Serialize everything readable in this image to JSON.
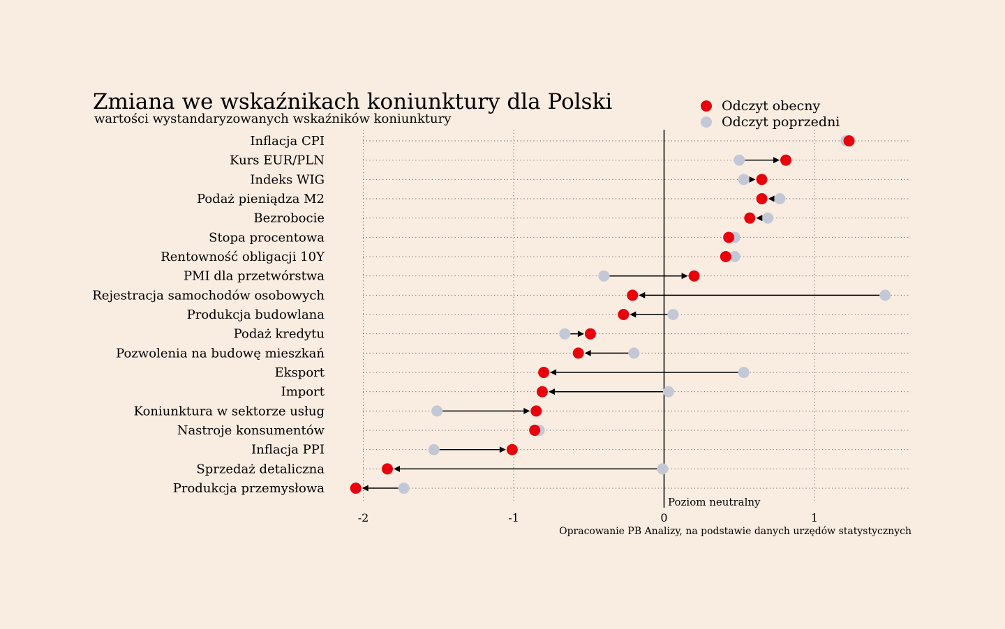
{
  "chart_data": {
    "type": "scatter",
    "subtype": "dumbbell-arrow",
    "title": "Zmiana we wskaźnikach koniunktury dla Polski",
    "subtitle": "wartości wystandaryzowanych wskaźników koniunktury",
    "source": "Opracowanie PB Analizy, na podstawie danych urzędów statystycznych",
    "neutral_label": "Poziom neutralny",
    "xlim": [
      -2.15,
      1.64
    ],
    "xticks": [
      -2,
      -1,
      0,
      1
    ],
    "xtick_labels": [
      "-2",
      "-1",
      "0",
      "1"
    ],
    "grid": true,
    "legend_position": "top-right",
    "series": [
      {
        "name": "Odczyt obecny",
        "color": "#e8000b"
      },
      {
        "name": "Odczyt poprzedni",
        "color": "#c3c8d6"
      }
    ],
    "categories": [
      "Inflacja CPI",
      "Kurs EUR/PLN",
      "Indeks WIG",
      "Podaż pieniądza M2",
      "Bezrobocie",
      "Stopa procentowa",
      "Rentowność obligacji 10Y",
      "PMI dla przetwórstwa",
      "Rejestracja samochodów osobowych",
      "Produkcja budowlana",
      "Podaż kredytu",
      "Pozwolenia na budowę mieszkań",
      "Eksport",
      "Import",
      "Koniunktura w sektorze usług",
      "Nastroje konsumentów",
      "Inflacja PPI",
      "Sprzedaż detaliczna",
      "Produkcja przemysłowa"
    ],
    "current": [
      1.23,
      0.81,
      0.65,
      0.65,
      0.57,
      0.43,
      0.41,
      0.2,
      -0.21,
      -0.27,
      -0.49,
      -0.57,
      -0.8,
      -0.81,
      -0.85,
      -0.86,
      -1.01,
      -1.84,
      -2.05
    ],
    "previous": [
      1.21,
      0.5,
      0.53,
      0.77,
      0.69,
      0.47,
      0.47,
      -0.4,
      1.47,
      0.06,
      -0.66,
      -0.2,
      0.53,
      0.03,
      -1.51,
      -0.83,
      -1.53,
      -0.01,
      -1.73
    ]
  },
  "colors": {
    "background": "#f9ece1",
    "current": "#e8000b",
    "previous": "#c3c8d6",
    "text": "#1a1a1a"
  }
}
